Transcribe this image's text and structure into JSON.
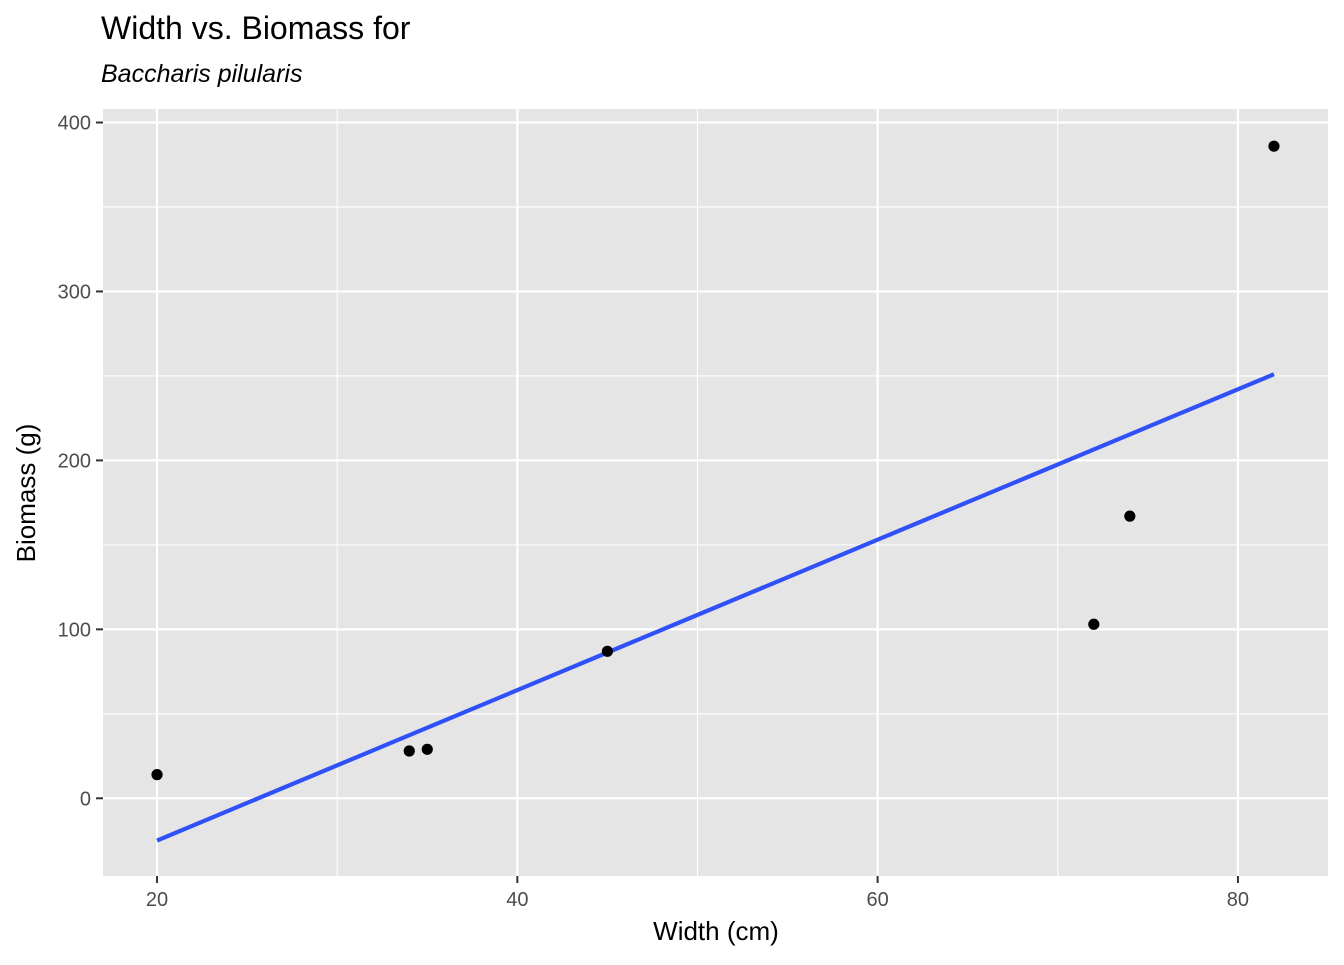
{
  "chart_data": {
    "type": "scatter",
    "title": "Width vs. Biomass for",
    "subtitle": "Baccharis pilularis",
    "xlabel": "Width (cm)",
    "ylabel": "Biomass (g)",
    "xlim": [
      17,
      85
    ],
    "ylim": [
      -46,
      408
    ],
    "x_ticks": [
      20,
      40,
      60,
      80
    ],
    "y_ticks": [
      0,
      100,
      200,
      300,
      400
    ],
    "x_minor_ticks": [
      30,
      50,
      70
    ],
    "y_minor_ticks": [
      50,
      150,
      250,
      350
    ],
    "grid": true,
    "points": [
      {
        "x": 20,
        "y": 14
      },
      {
        "x": 34,
        "y": 28
      },
      {
        "x": 35,
        "y": 29
      },
      {
        "x": 45,
        "y": 87
      },
      {
        "x": 72,
        "y": 103
      },
      {
        "x": 74,
        "y": 167
      },
      {
        "x": 82,
        "y": 386
      }
    ],
    "fit_line": {
      "method": "linear",
      "x": [
        20,
        82
      ],
      "y": [
        -25,
        251
      ]
    },
    "colors": {
      "panel_background": "#e5e5e5",
      "grid_line": "#ffffff",
      "points": "#000000",
      "fit_line": "#3050f8",
      "tick_label": "#4d4d4d",
      "tick_mark": "#333333"
    }
  }
}
